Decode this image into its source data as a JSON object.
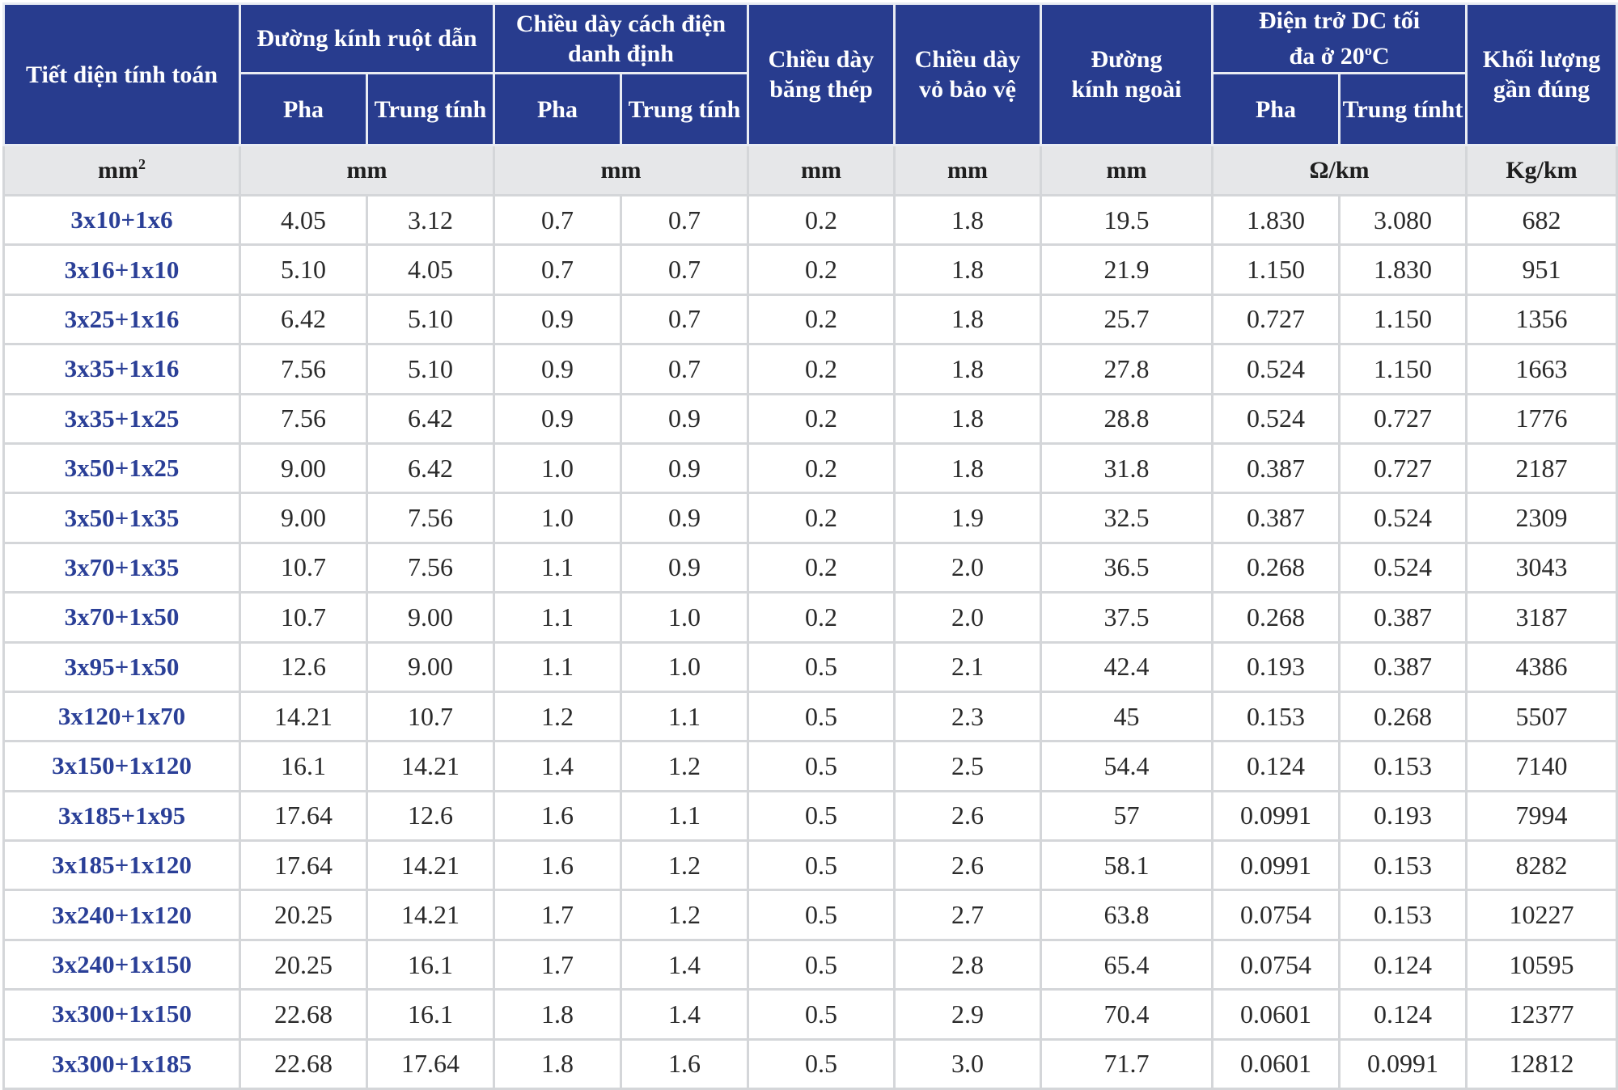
{
  "headers": {
    "section": "Tiết diện tính toán",
    "conductor_diameter": "Đường kính ruột dẫn",
    "insulation_thickness": "Chiều dày cách điện danh định",
    "steel_tape": "Chiều dày băng thép",
    "sheath": "Chiều dày vỏ bảo vệ",
    "outer_diameter": "Đường kính ngoài",
    "dc_resistance_main": "Điện trở DC tối đa ở 20",
    "dc_resistance_sup": "o",
    "dc_resistance_unit": "C",
    "weight": "Khối lượng gần đúng",
    "phase": "Pha",
    "neutral": "Trung tính",
    "neutral_alt": "Trung tínht"
  },
  "units": {
    "section_base": "mm",
    "section_sup": "2",
    "conductor": "mm",
    "insulation": "mm",
    "steel_tape": "mm",
    "sheath": "mm",
    "outer": "mm",
    "resistance": "Ω/km",
    "weight": "Kg/km"
  },
  "rows": [
    [
      "3x10+1x6",
      "4.05",
      "3.12",
      "0.7",
      "0.7",
      "0.2",
      "1.8",
      "19.5",
      "1.830",
      "3.080",
      "682"
    ],
    [
      "3x16+1x10",
      "5.10",
      "4.05",
      "0.7",
      "0.7",
      "0.2",
      "1.8",
      "21.9",
      "1.150",
      "1.830",
      "951"
    ],
    [
      "3x25+1x16",
      "6.42",
      "5.10",
      "0.9",
      "0.7",
      "0.2",
      "1.8",
      "25.7",
      "0.727",
      "1.150",
      "1356"
    ],
    [
      "3x35+1x16",
      "7.56",
      "5.10",
      "0.9",
      "0.7",
      "0.2",
      "1.8",
      "27.8",
      "0.524",
      "1.150",
      "1663"
    ],
    [
      "3x35+1x25",
      "7.56",
      "6.42",
      "0.9",
      "0.9",
      "0.2",
      "1.8",
      "28.8",
      "0.524",
      "0.727",
      "1776"
    ],
    [
      "3x50+1x25",
      "9.00",
      "6.42",
      "1.0",
      "0.9",
      "0.2",
      "1.8",
      "31.8",
      "0.387",
      "0.727",
      "2187"
    ],
    [
      "3x50+1x35",
      "9.00",
      "7.56",
      "1.0",
      "0.9",
      "0.2",
      "1.9",
      "32.5",
      "0.387",
      "0.524",
      "2309"
    ],
    [
      "3x70+1x35",
      "10.7",
      "7.56",
      "1.1",
      "0.9",
      "0.2",
      "2.0",
      "36.5",
      "0.268",
      "0.524",
      "3043"
    ],
    [
      "3x70+1x50",
      "10.7",
      "9.00",
      "1.1",
      "1.0",
      "0.2",
      "2.0",
      "37.5",
      "0.268",
      "0.387",
      "3187"
    ],
    [
      "3x95+1x50",
      "12.6",
      "9.00",
      "1.1",
      "1.0",
      "0.5",
      "2.1",
      "42.4",
      "0.193",
      "0.387",
      "4386"
    ],
    [
      "3x120+1x70",
      "14.21",
      "10.7",
      "1.2",
      "1.1",
      "0.5",
      "2.3",
      "45",
      "0.153",
      "0.268",
      "5507"
    ],
    [
      "3x150+1x120",
      "16.1",
      "14.21",
      "1.4",
      "1.2",
      "0.5",
      "2.5",
      "54.4",
      "0.124",
      "0.153",
      "7140"
    ],
    [
      "3x185+1x95",
      "17.64",
      "12.6",
      "1.6",
      "1.1",
      "0.5",
      "2.6",
      "57",
      "0.0991",
      "0.193",
      "7994"
    ],
    [
      "3x185+1x120",
      "17.64",
      "14.21",
      "1.6",
      "1.2",
      "0.5",
      "2.6",
      "58.1",
      "0.0991",
      "0.153",
      "8282"
    ],
    [
      "3x240+1x120",
      "20.25",
      "14.21",
      "1.7",
      "1.2",
      "0.5",
      "2.7",
      "63.8",
      "0.0754",
      "0.153",
      "10227"
    ],
    [
      "3x240+1x150",
      "20.25",
      "16.1",
      "1.7",
      "1.4",
      "0.5",
      "2.8",
      "65.4",
      "0.0754",
      "0.124",
      "10595"
    ],
    [
      "3x300+1x150",
      "22.68",
      "16.1",
      "1.8",
      "1.4",
      "0.5",
      "2.9",
      "70.4",
      "0.0601",
      "0.124",
      "12377"
    ],
    [
      "3x300+1x185",
      "22.68",
      "17.64",
      "1.8",
      "1.6",
      "0.5",
      "3.0",
      "71.7",
      "0.0601",
      "0.0991",
      "12812"
    ]
  ]
}
